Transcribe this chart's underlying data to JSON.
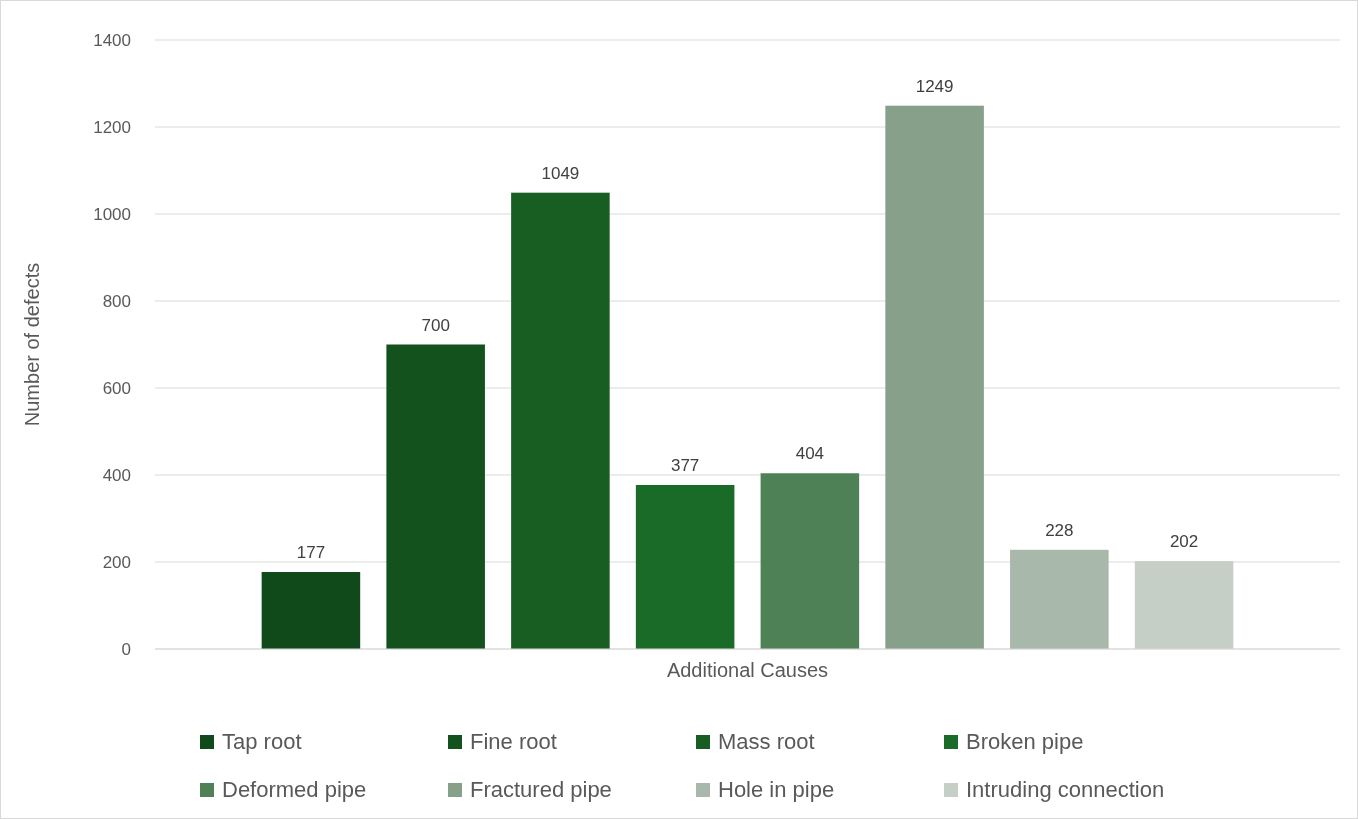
{
  "chart_data": {
    "type": "bar",
    "xlabel": "Additional Causes",
    "ylabel": "Number of defects",
    "categories": [
      null
    ],
    "series": [
      {
        "name": "Tap root",
        "color": "#114a1a",
        "values": [
          177
        ]
      },
      {
        "name": "Fine root",
        "color": "#13521c",
        "values": [
          700
        ]
      },
      {
        "name": "Mass root",
        "color": "#185e22",
        "values": [
          1049
        ]
      },
      {
        "name": "Broken pipe",
        "color": "#1a6b27",
        "values": [
          377
        ]
      },
      {
        "name": "Deformed pipe",
        "color": "#4e8155",
        "values": [
          404
        ]
      },
      {
        "name": "Fractured pipe",
        "color": "#87a08a",
        "values": [
          1249
        ]
      },
      {
        "name": "Hole in pipe",
        "color": "#a8b8aa",
        "values": [
          228
        ]
      },
      {
        "name": "Intruding connection",
        "color": "#c5cfc6",
        "values": [
          202
        ]
      }
    ],
    "ylim": [
      0,
      1400
    ],
    "yticks": [
      0,
      200,
      400,
      600,
      800,
      1000,
      1200,
      1400
    ],
    "grid": "y",
    "data_labels": true,
    "legend": "bottom"
  }
}
